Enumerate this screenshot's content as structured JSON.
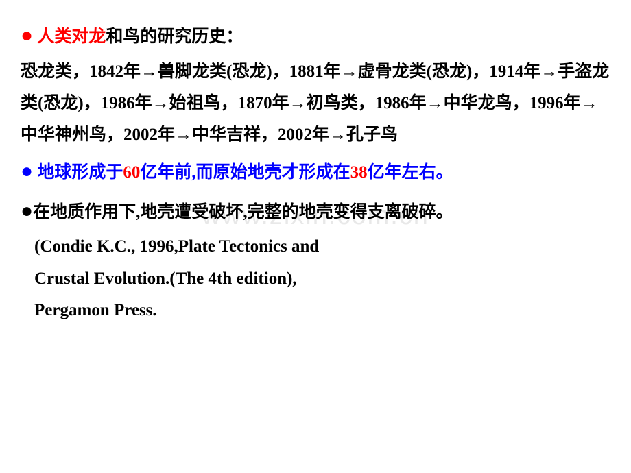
{
  "section1": {
    "bullet": "●",
    "heading_part1": " 人类对龙",
    "heading_part2": "和鸟的研究历史：",
    "body": "恐龙类，1842年→兽脚龙类(恐龙)，1881年→虚骨龙类(恐龙)，1914年→手盗龙类(恐龙)，1986年→始祖鸟，1870年→初鸟类，1986年→中华龙鸟，1996年→中华神州鸟，2002年→中华吉祥，2002年→孔子鸟"
  },
  "section2": {
    "bullet": "●",
    "part1": " 地球形成于",
    "num1": "60",
    "part2": "亿年前,而原始地壳才形成在",
    "num2": "38",
    "part3": "亿年左右。"
  },
  "section3": {
    "bullet": " ●",
    "body": "在地质作用下,地壳遭受破坏,完整的地壳变得支离破碎。"
  },
  "reference": {
    "line1": "(Condie K.C., 1996,Plate Tectonics and",
    "line2": " Crustal Evolution.(The 4th edition),",
    "line3": " Pergamon Press."
  },
  "watermark": "www.zixin.com.cn",
  "colors": {
    "red": "#ff0000",
    "blue": "#0000ff",
    "black": "#000000",
    "background": "#ffffff",
    "watermark": "#e8e8e8"
  },
  "typography": {
    "body_fontsize": 25,
    "bullet_fontsize": 30,
    "font_weight": "bold",
    "line_height": 1.85
  }
}
